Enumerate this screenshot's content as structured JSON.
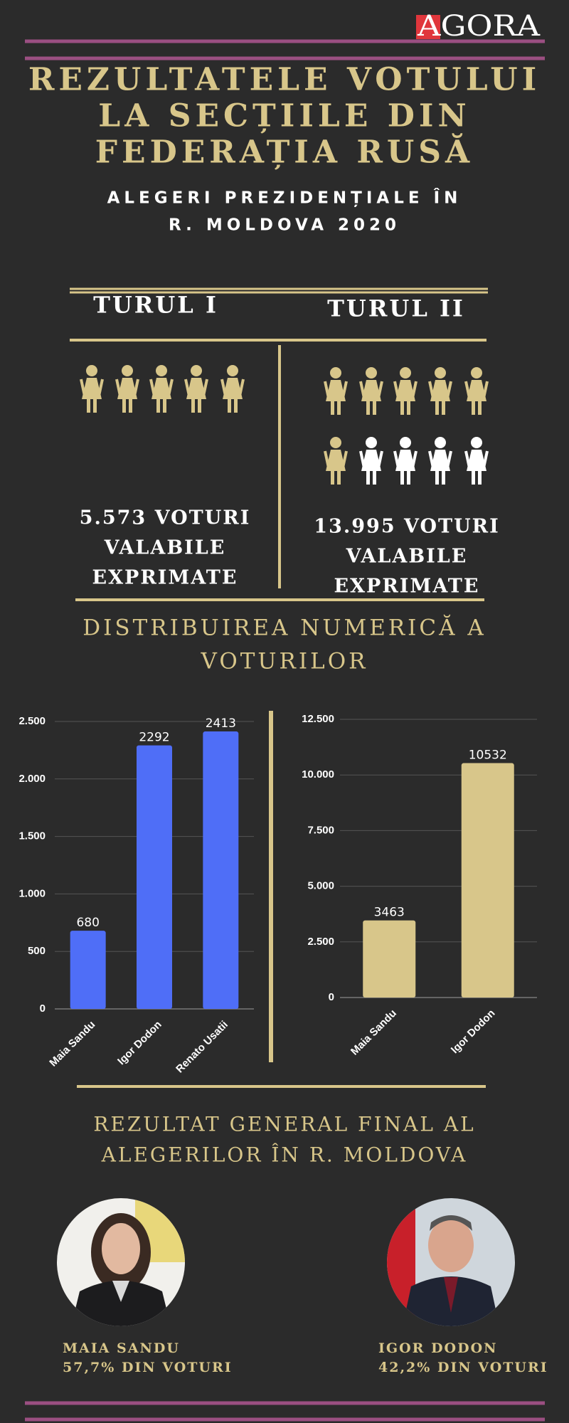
{
  "logo": "AGORA",
  "title": [
    "REZULTATELE VOTULUI",
    "LA SECȚIILE DIN",
    "FEDERAȚIA RUSĂ"
  ],
  "subtitle": [
    "ALEGERI PREZIDENȚIALE ÎN",
    "R. MOLDOVA 2020"
  ],
  "rounds": [
    {
      "label": "TURUL I",
      "votes_text": [
        "5.573 VOTURI",
        "VALABILE",
        "EXPRIMATE"
      ]
    },
    {
      "label": "TURUL II",
      "votes_text": [
        "13.995 VOTURI",
        "VALABILE",
        "EXPRIMATE"
      ]
    }
  ],
  "distribution_title": [
    "DISTRIBUIREA NUMERICĂ A",
    "VOTURILOR"
  ],
  "chart_data": [
    {
      "type": "bar",
      "categories": [
        "Maia Sandu",
        "Igor Dodon",
        "Renato Usatii"
      ],
      "values": [
        680,
        2292,
        2413
      ],
      "color": "#4f6ef7",
      "ylim": [
        0,
        2500
      ],
      "yticks": [
        0,
        500,
        {
          "value": 1000,
          "label": "1.000"
        },
        {
          "value": 1500,
          "label": "1.500"
        },
        {
          "value": 2000,
          "label": "2.000"
        },
        {
          "value": 2500,
          "label": "2.500"
        }
      ],
      "grid": true
    },
    {
      "type": "bar",
      "categories": [
        "Maia Sandu",
        "Igor Dodon"
      ],
      "values": [
        3463,
        10532
      ],
      "color": "#d8c68a",
      "ylim": [
        0,
        12500
      ],
      "yticks": [
        0,
        {
          "value": 2500,
          "label": "2.500"
        },
        {
          "value": 5000,
          "label": "5.000"
        },
        {
          "value": 7500,
          "label": "7.500"
        },
        {
          "value": 10000,
          "label": "10.000"
        },
        {
          "value": 12500,
          "label": "12.500"
        }
      ],
      "grid": true
    }
  ],
  "final_title": [
    "REZULTAT GENERAL FINAL AL",
    "ALEGERILOR ÎN R. MOLDOVA"
  ],
  "candidates": [
    {
      "name": "MAIA SANDU",
      "result": "57,7% DIN VOTURI"
    },
    {
      "name": "IGOR DODON",
      "result": "42,2% DIN VOTURI"
    }
  ]
}
